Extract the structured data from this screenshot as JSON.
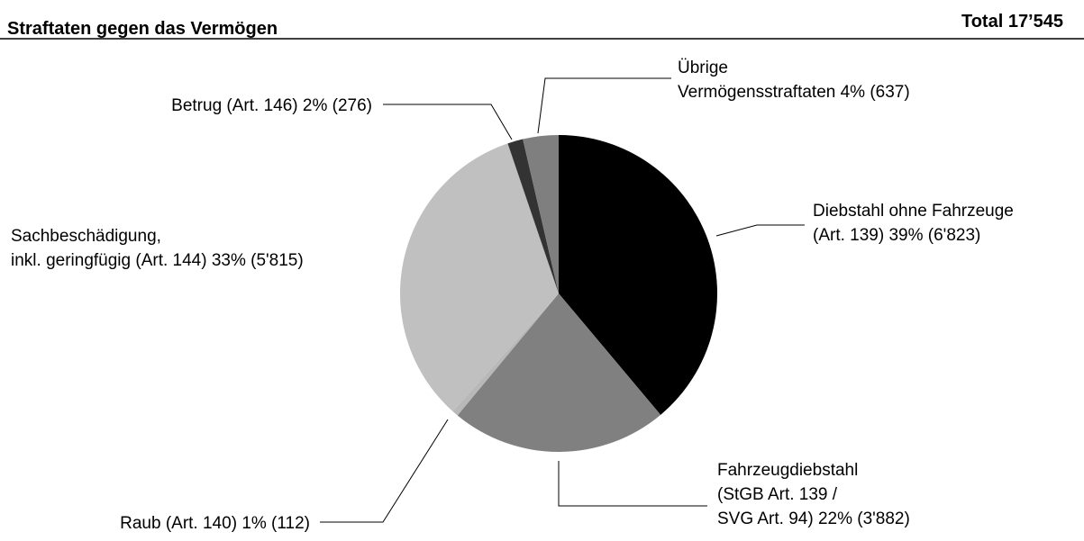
{
  "chart_data": {
    "type": "pie",
    "title": "Straftaten gegen das Vermögen",
    "total_label": "Total 17’545",
    "categories": [
      [
        "Diebstahl ohne Fahrzeuge",
        "(Art. 139)"
      ],
      [
        "Fahrzeugdiebstahl",
        "(StGB Art. 139 /",
        "SVG Art. 94)"
      ],
      [
        "Raub (Art. 140)"
      ],
      [
        "Sachbeschädigung,",
        "inkl. geringfügig (Art. 144)"
      ],
      [
        "Betrug (Art. 146)"
      ],
      [
        "Übrige",
        "Vermögensstraftaten"
      ]
    ],
    "values": [
      6823,
      3882,
      112,
      5815,
      276,
      637
    ],
    "value_labels": [
      "39% (6'823)",
      "22% (3'882)",
      "1% (112)",
      "33% (5'815)",
      "2% (276)",
      "4% (637)"
    ],
    "colors": [
      "#000000",
      "#808080",
      "#b8b8b8",
      "#c0c0c0",
      "#333333",
      "#7f7f7f"
    ]
  }
}
